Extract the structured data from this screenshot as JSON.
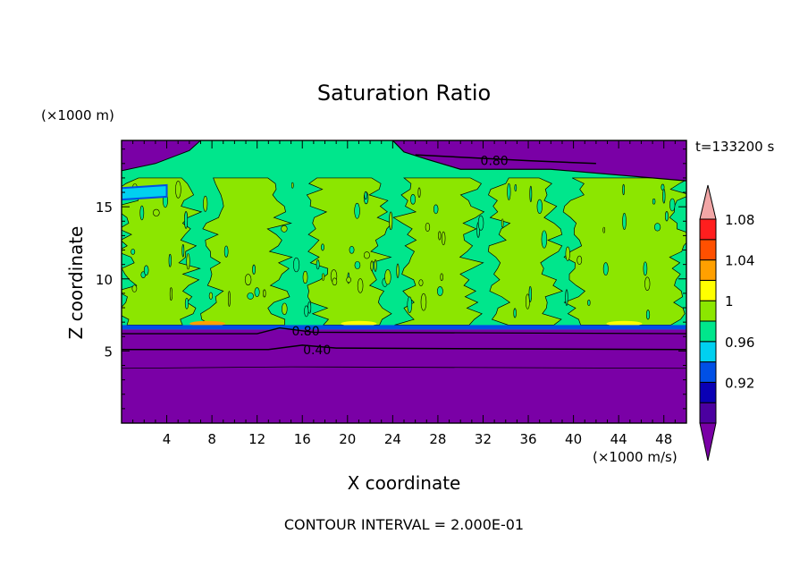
{
  "chart_data": {
    "type": "heatmap",
    "title": "Saturation Ratio",
    "xlabel": "X coordinate",
    "ylabel": "Z coordinate",
    "x_unit": "(×1000 m/s)",
    "y_unit": "(×1000 m)",
    "time_label": "t=133200 s",
    "footer": "CONTOUR INTERVAL = 2.000E-01",
    "xlim": [
      0,
      50
    ],
    "ylim": [
      0,
      19.6
    ],
    "x_ticks": [
      4,
      8,
      12,
      16,
      20,
      24,
      28,
      32,
      36,
      40,
      44,
      48
    ],
    "y_ticks": [
      5,
      10,
      15
    ],
    "contour_labels": [
      {
        "text": "0.80",
        "x": 33,
        "y": 18.2
      },
      {
        "text": "0.80",
        "x": 16.3,
        "y": 6.4
      },
      {
        "text": "0.40",
        "x": 17.3,
        "y": 5.1
      }
    ],
    "colorbar": {
      "levels": [
        "0.92",
        "0.96",
        "1",
        "1.04",
        "1.08"
      ],
      "bins": [
        {
          "upper": 0.9,
          "color": "#7a00a6"
        },
        {
          "upper": 0.92,
          "color": "#4b00a0"
        },
        {
          "upper": 0.94,
          "color": "#0a00b4"
        },
        {
          "upper": 0.96,
          "color": "#0050e6"
        },
        {
          "upper": 0.98,
          "color": "#00d0f0"
        },
        {
          "upper": 1.0,
          "color": "#00e68c"
        },
        {
          "upper": 1.02,
          "color": "#8ce600"
        },
        {
          "upper": 1.04,
          "color": "#ffff00"
        },
        {
          "upper": 1.06,
          "color": "#ffa000"
        },
        {
          "upper": 1.08,
          "color": "#ff5000"
        },
        {
          "upper": 1.1,
          "color": "#ff1e1e"
        },
        {
          "upper": 1.12,
          "color": "#f2a6a6"
        }
      ]
    },
    "regions": {
      "dry_lower_layer": {
        "z_range": [
          0,
          6.5
        ],
        "value": "<0.90",
        "color": "#7a00a6"
      },
      "moist_layer_base": {
        "z_range": [
          6.5,
          6.8
        ],
        "value": "0.96",
        "color": "#0050e6"
      },
      "saturated_layer": {
        "z_range": [
          6.8,
          19.6
        ],
        "value": "0.98-1.02",
        "colors": [
          "#00e68c",
          "#8ce600"
        ]
      },
      "dry_upper_left": {
        "x_range": [
          0,
          7
        ],
        "z_range": [
          17.5,
          19.6
        ],
        "value": "<0.90",
        "color": "#7a00a6"
      },
      "dry_upper_right": {
        "x_range": [
          24,
          50
        ],
        "z_range": [
          17.3,
          19.6
        ],
        "value": "<0.90",
        "color": "#7a00a6"
      },
      "supersaturated_patches": [
        {
          "x": 21,
          "z": 6.9,
          "value": "1.04"
        },
        {
          "x": 7.6,
          "z": 6.9,
          "value": "1.06"
        },
        {
          "x": 44.5,
          "z": 6.9,
          "value": "1.04"
        }
      ]
    }
  }
}
